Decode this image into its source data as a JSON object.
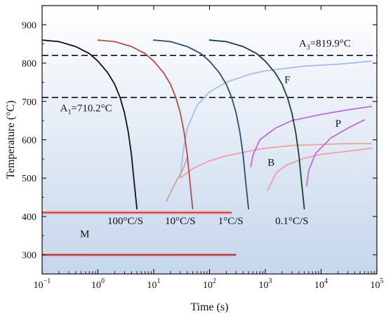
{
  "chart_data": {
    "type": "line",
    "title": "",
    "xlabel": "Time (s)",
    "ylabel": "Temperature (°C)",
    "x_scale": "log",
    "xlim": [
      0.1,
      100000
    ],
    "ylim": [
      250,
      950
    ],
    "x_tick_labels": [
      {
        "base": "10",
        "exp": "−1"
      },
      {
        "base": "10",
        "exp": "0"
      },
      {
        "base": "10",
        "exp": "1"
      },
      {
        "base": "10",
        "exp": "2"
      },
      {
        "base": "10",
        "exp": "3"
      },
      {
        "base": "10",
        "exp": "4"
      },
      {
        "base": "10",
        "exp": "5"
      }
    ],
    "x_tick_values": [
      0.1,
      1,
      10,
      100,
      1000,
      10000,
      100000
    ],
    "y_tick_labels": [
      "300",
      "400",
      "500",
      "600",
      "700",
      "800",
      "900"
    ],
    "y_tick_values": [
      300,
      400,
      500,
      600,
      700,
      800,
      900
    ],
    "background_gradient": [
      "#ffffff",
      "#c6d6ec"
    ],
    "reference_lines": [
      {
        "name": "A3",
        "label_base": "A",
        "label_sub": "3",
        "label_rest": "=819.9°C",
        "y": 819.9,
        "style": "dashed",
        "color": "#111111"
      },
      {
        "name": "A1",
        "label_base": "A",
        "label_sub": "1",
        "label_rest": "=710.2°C",
        "y": 710.2,
        "style": "dashed",
        "color": "#111111"
      }
    ],
    "cooling_curves": [
      {
        "label": "100°C/S",
        "color": "#111111",
        "points": [
          [
            0.1,
            860
          ],
          [
            0.2,
            856
          ],
          [
            0.4,
            843
          ],
          [
            0.7,
            825
          ],
          [
            1,
            805
          ],
          [
            1.5,
            775
          ],
          [
            2,
            745
          ],
          [
            2.5,
            710
          ],
          [
            3,
            670
          ],
          [
            3.5,
            620
          ],
          [
            4,
            560
          ],
          [
            4.5,
            485
          ],
          [
            5,
            420
          ]
        ]
      },
      {
        "label": "10°C/S",
        "color": "#b24d4d",
        "points": [
          [
            1,
            860
          ],
          [
            2,
            856
          ],
          [
            4,
            843
          ],
          [
            7,
            825
          ],
          [
            10,
            805
          ],
          [
            15,
            775
          ],
          [
            20,
            745
          ],
          [
            25,
            710
          ],
          [
            30,
            670
          ],
          [
            35,
            620
          ],
          [
            40,
            560
          ],
          [
            45,
            485
          ],
          [
            50,
            420
          ]
        ]
      },
      {
        "label": "1°C/S",
        "color": "#2c4d70",
        "points": [
          [
            10,
            860
          ],
          [
            20,
            856
          ],
          [
            40,
            843
          ],
          [
            70,
            825
          ],
          [
            100,
            805
          ],
          [
            150,
            775
          ],
          [
            200,
            745
          ],
          [
            250,
            710
          ],
          [
            300,
            670
          ],
          [
            350,
            620
          ],
          [
            400,
            560
          ],
          [
            450,
            485
          ],
          [
            500,
            420
          ]
        ]
      },
      {
        "label": "0.1°C/S",
        "color": "#17432e",
        "points": [
          [
            100,
            860
          ],
          [
            200,
            856
          ],
          [
            400,
            843
          ],
          [
            700,
            825
          ],
          [
            1000,
            805
          ],
          [
            1500,
            775
          ],
          [
            2000,
            745
          ],
          [
            2500,
            710
          ],
          [
            3000,
            670
          ],
          [
            3500,
            620
          ],
          [
            4000,
            560
          ],
          [
            4500,
            485
          ],
          [
            5000,
            420
          ]
        ]
      }
    ],
    "phase_curves": [
      {
        "name": "F-start",
        "color": "#a7bde6",
        "points": [
          [
            30,
            500
          ],
          [
            33,
            560
          ],
          [
            40,
            630
          ],
          [
            60,
            690
          ],
          [
            100,
            725
          ],
          [
            200,
            750
          ],
          [
            500,
            770
          ],
          [
            1000,
            780
          ],
          [
            5000,
            792
          ],
          [
            20000,
            797
          ],
          [
            80000,
            805
          ]
        ]
      },
      {
        "name": "F-lower",
        "color": "#c2aa98",
        "points": [
          [
            17,
            440
          ],
          [
            20,
            462
          ],
          [
            25,
            490
          ],
          [
            30,
            510
          ],
          [
            35,
            530
          ],
          [
            40,
            555
          ]
        ]
      },
      {
        "name": "B-start",
        "color": "#f0a0a0",
        "points": [
          [
            30,
            500
          ],
          [
            50,
            525
          ],
          [
            100,
            545
          ],
          [
            200,
            558
          ],
          [
            500,
            570
          ],
          [
            1000,
            578
          ],
          [
            3000,
            585
          ],
          [
            10000,
            588
          ],
          [
            30000,
            590
          ],
          [
            80000,
            590
          ]
        ]
      },
      {
        "name": "B-finish",
        "color": "#f0a0a0",
        "points": [
          [
            1100,
            468
          ],
          [
            1300,
            490
          ],
          [
            1600,
            515
          ],
          [
            2500,
            535
          ],
          [
            5000,
            552
          ],
          [
            10000,
            562
          ],
          [
            30000,
            570
          ],
          [
            80000,
            578
          ]
        ]
      },
      {
        "name": "P-start-1",
        "color": "#c06ae0",
        "points": [
          [
            550,
            530
          ],
          [
            600,
            560
          ],
          [
            800,
            600
          ],
          [
            1500,
            630
          ],
          [
            3000,
            650
          ],
          [
            10000,
            666
          ],
          [
            30000,
            678
          ],
          [
            80000,
            687
          ]
        ]
      },
      {
        "name": "P-start-2",
        "color": "#c06ae0",
        "points": [
          [
            5500,
            480
          ],
          [
            6000,
            520
          ],
          [
            8000,
            565
          ],
          [
            15000,
            605
          ],
          [
            30000,
            630
          ],
          [
            60000,
            652
          ]
        ]
      }
    ],
    "horizontal_segments": [
      {
        "name": "Ms-line",
        "y": 410,
        "x_start": 0.1,
        "x_end": 250,
        "color": "#c03030",
        "halo": "#f4a0a0"
      },
      {
        "name": "Mf-line",
        "y": 300,
        "x_start": 0.1,
        "x_end": 300,
        "color": "#7a2828",
        "halo": "#f4a0a0"
      }
    ],
    "annotations": [
      {
        "name": "A3-label",
        "text_base": "A",
        "text_sub": "3",
        "text_rest": "=819.9°C",
        "x": 4000,
        "y": 843
      },
      {
        "name": "A1-label",
        "text_base": "A",
        "text_sub": "1",
        "text_rest": "=710.2°C",
        "x": 0.21,
        "y": 674
      },
      {
        "name": "F-label",
        "text": "F",
        "x": 2200,
        "y": 748
      },
      {
        "name": "P-label",
        "text": "P",
        "x": 18000,
        "y": 634
      },
      {
        "name": "B-label",
        "text": "B",
        "x": 1100,
        "y": 532
      },
      {
        "name": "M-label",
        "text": "M",
        "x": 0.48,
        "y": 346
      },
      {
        "name": "rate-100-label",
        "text": "100°C/S",
        "x": 3.1,
        "y": 380
      },
      {
        "name": "rate-10-label",
        "text": "10°C/S",
        "x": 30,
        "y": 380
      },
      {
        "name": "rate-1-label",
        "text": "1°C/S",
        "x": 240,
        "y": 380
      },
      {
        "name": "rate-0.1-label",
        "text": "0.1°C/S",
        "x": 3000,
        "y": 380
      }
    ],
    "grid": false,
    "legend": "none"
  }
}
